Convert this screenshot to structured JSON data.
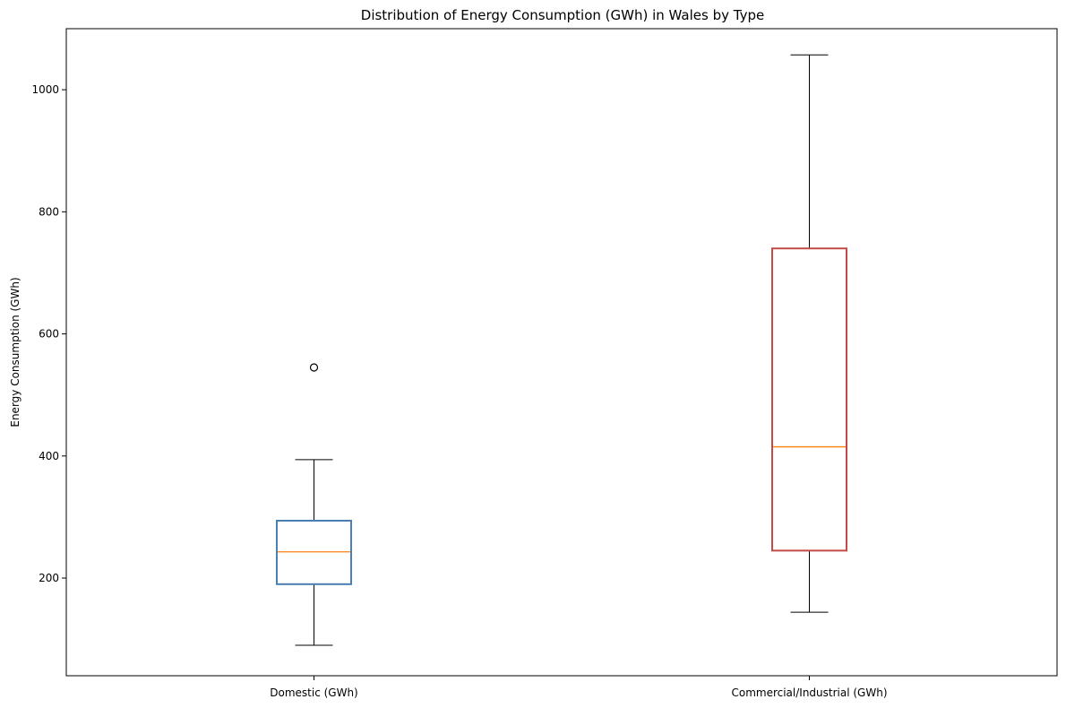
{
  "chart_data": {
    "type": "box",
    "title": "Distribution of Energy Consumption (GWh) in Wales by Type",
    "xlabel": "",
    "ylabel": "Energy Consumption (GWh)",
    "ylim": [
      40,
      1100
    ],
    "yticks": [
      200,
      400,
      600,
      800,
      1000
    ],
    "categories": [
      "Domestic (GWh)",
      "Commercial/Industrial (GWh)"
    ],
    "boxes": [
      {
        "category": "Domestic (GWh)",
        "whisker_low": 90,
        "q1": 190,
        "median": 243,
        "q3": 294,
        "whisker_high": 394,
        "outliers": [
          545
        ],
        "color": "#4a7eb5"
      },
      {
        "category": "Commercial/Industrial (GWh)",
        "whisker_low": 144,
        "q1": 245,
        "median": 415,
        "q3": 740,
        "whisker_high": 1057,
        "outliers": [],
        "color": "#c24a47"
      }
    ],
    "median_color": "#ff7f0e",
    "grid": false,
    "legend": "none"
  }
}
